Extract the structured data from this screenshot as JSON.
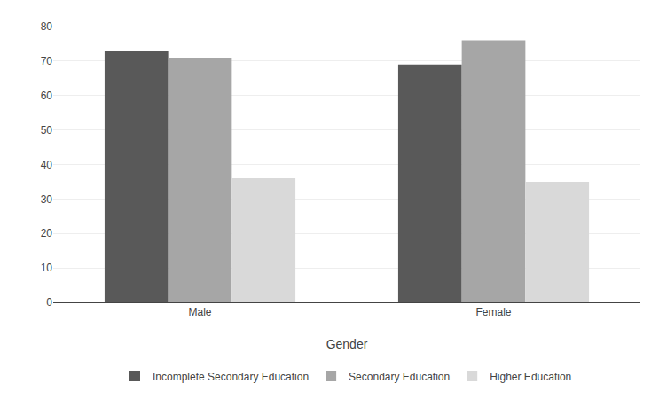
{
  "chart_data": {
    "type": "bar",
    "categories": [
      "Male",
      "Female"
    ],
    "series": [
      {
        "name": "Incomplete Secondary Education",
        "values": [
          73,
          69
        ],
        "color": "#595959"
      },
      {
        "name": "Secondary Education",
        "values": [
          71,
          76
        ],
        "color": "#A6A6A6"
      },
      {
        "name": "Higher Education",
        "values": [
          36,
          35
        ],
        "color": "#D9D9D9"
      }
    ],
    "xlabel": "Gender",
    "ylim": [
      0,
      80
    ],
    "yticks": [
      0,
      10,
      20,
      30,
      40,
      50,
      60,
      70,
      80
    ],
    "grid": true,
    "legend": "bottom"
  }
}
